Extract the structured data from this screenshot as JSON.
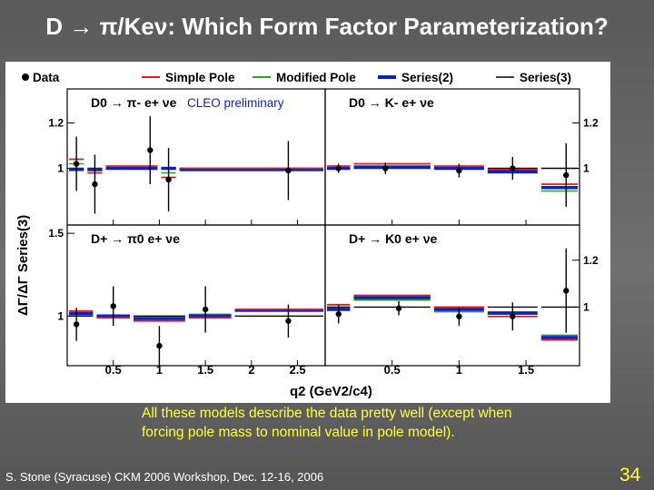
{
  "slide": {
    "title": "D → π/Keν: Which Form Factor  Parameterization?",
    "caption_line1": "All these models describe the data pretty well (except when",
    "caption_line2": "forcing pole mass to nominal value in pole model).",
    "footer": "S. Stone (Syracuse) CKM 2006 Workshop, Dec. 12-16, 2006",
    "page_number": "34"
  },
  "colors": {
    "data": "#000000",
    "simple_pole": "#e31a1c",
    "modified_pole": "#2ca02c",
    "series2": "#0a1fc4",
    "series3": "#000000",
    "yellow": "#ffff33"
  },
  "chart_data": {
    "type": "scatter",
    "xlabel": "q2 (GeV2/c4)",
    "ylabel": "ΔΓ/ΔΓ Series(3)",
    "legend": {
      "placement": "top",
      "entries": [
        "Data",
        "Simple Pole",
        "Modified Pole",
        "Series(2)",
        "Series(3)"
      ]
    },
    "panels": [
      {
        "label": "D0 → π- e+ νe",
        "annotation": "CLEO preliminary",
        "xlim": [
          0,
          2.8
        ],
        "ylim": [
          0.75,
          1.35
        ],
        "yticks": [
          1,
          1.2
        ],
        "data": [
          {
            "x": 0.1,
            "y": 1.02,
            "err": 0.12
          },
          {
            "x": 0.3,
            "y": 0.93,
            "err": 0.13
          },
          {
            "x": 0.9,
            "y": 1.08,
            "err": 0.15
          },
          {
            "x": 1.1,
            "y": 0.95,
            "err": 0.14
          },
          {
            "x": 2.4,
            "y": 0.99,
            "err": 0.13
          }
        ],
        "bins": [
          [
            0,
            0.2
          ],
          [
            0.2,
            0.4
          ],
          [
            0.4,
            1.0
          ],
          [
            1.0,
            1.2
          ],
          [
            1.2,
            2.8
          ]
        ],
        "models": {
          "simple_pole": [
            1.04,
            0.98,
            1.01,
            0.96,
            1.0
          ],
          "modified_pole": [
            1.02,
            0.99,
            1.0,
            0.98,
            0.99
          ],
          "series2": [
            0.995,
            0.995,
            1.0,
            1.0,
            0.995
          ],
          "series3": [
            1.0,
            1.0,
            1.0,
            1.0,
            1.0
          ]
        }
      },
      {
        "label": "D0 → K- e+ νe",
        "xlim": [
          0,
          1.9
        ],
        "ylim": [
          0.75,
          1.35
        ],
        "yticks": [
          1,
          1.2
        ],
        "data": [
          {
            "x": 0.1,
            "y": 1.0,
            "err": 0.02
          },
          {
            "x": 0.45,
            "y": 1.0,
            "err": 0.025
          },
          {
            "x": 1.0,
            "y": 0.99,
            "err": 0.03
          },
          {
            "x": 1.4,
            "y": 1.0,
            "err": 0.05
          },
          {
            "x": 1.8,
            "y": 0.97,
            "err": 0.14
          }
        ],
        "bins": [
          [
            0,
            0.2
          ],
          [
            0.2,
            0.8
          ],
          [
            0.8,
            1.2
          ],
          [
            1.2,
            1.6
          ],
          [
            1.6,
            1.9
          ]
        ],
        "models": {
          "simple_pole": [
            1.01,
            1.02,
            1.01,
            0.995,
            0.93
          ],
          "modified_pole": [
            1.0,
            1.01,
            1.0,
            0.98,
            0.9
          ],
          "series2": [
            1.0,
            1.005,
            1.0,
            0.985,
            0.915
          ],
          "series3": [
            1.0,
            1.0,
            1.0,
            1.0,
            1.0
          ]
        }
      },
      {
        "label": "D+ → π0 e+ νe",
        "xlim": [
          0,
          2.8
        ],
        "ylim": [
          0.7,
          1.55
        ],
        "yticks": [
          1,
          1.5
        ],
        "data": [
          {
            "x": 0.1,
            "y": 0.95,
            "err": 0.1
          },
          {
            "x": 0.5,
            "y": 1.06,
            "err": 0.12
          },
          {
            "x": 1.0,
            "y": 0.82,
            "err": 0.12
          },
          {
            "x": 1.5,
            "y": 1.04,
            "err": 0.14
          },
          {
            "x": 2.4,
            "y": 0.97,
            "err": 0.1
          }
        ],
        "bins": [
          [
            0,
            0.3
          ],
          [
            0.3,
            0.7
          ],
          [
            0.7,
            1.3
          ],
          [
            1.3,
            1.8
          ],
          [
            1.8,
            2.8
          ]
        ],
        "models": {
          "simple_pole": [
            1.03,
            0.99,
            0.97,
            0.99,
            1.04
          ],
          "modified_pole": [
            1.02,
            1.0,
            0.98,
            1.01,
            1.03
          ],
          "series2": [
            1.015,
            1.0,
            0.985,
            1.0,
            1.035
          ],
          "series3": [
            1.0,
            1.0,
            1.0,
            1.0,
            1.0
          ]
        }
      },
      {
        "label": "D+ → K0 e+ νe",
        "xlim": [
          0,
          1.9
        ],
        "ylim": [
          0.75,
          1.35
        ],
        "yticks": [
          1,
          1.2
        ],
        "data": [
          {
            "x": 0.1,
            "y": 0.97,
            "err": 0.04
          },
          {
            "x": 0.55,
            "y": 0.995,
            "err": 0.03
          },
          {
            "x": 1.0,
            "y": 0.96,
            "err": 0.04
          },
          {
            "x": 1.4,
            "y": 0.96,
            "err": 0.06
          },
          {
            "x": 1.8,
            "y": 1.07,
            "err": 0.18
          }
        ],
        "bins": [
          [
            0,
            0.2
          ],
          [
            0.2,
            0.8
          ],
          [
            0.8,
            1.2
          ],
          [
            1.2,
            1.6
          ],
          [
            1.6,
            1.9
          ]
        ],
        "models": {
          "simple_pole": [
            1.01,
            1.05,
            1.0,
            0.96,
            0.86
          ],
          "modified_pole": [
            0.995,
            1.03,
            0.98,
            0.97,
            0.88
          ],
          "series2": [
            0.99,
            1.04,
            0.99,
            0.975,
            0.87
          ],
          "series3": [
            1.0,
            1.0,
            1.0,
            1.0,
            1.0
          ]
        }
      }
    ],
    "xticks_left": [
      "0.5",
      "1",
      "1.5",
      "2",
      "2.5"
    ],
    "xtick_values_left": [
      0.5,
      1,
      1.5,
      2,
      2.5
    ],
    "xticks_right": [
      "0.5",
      "1",
      "1.5"
    ],
    "xtick_values_right": [
      0.5,
      1,
      1.5
    ]
  }
}
